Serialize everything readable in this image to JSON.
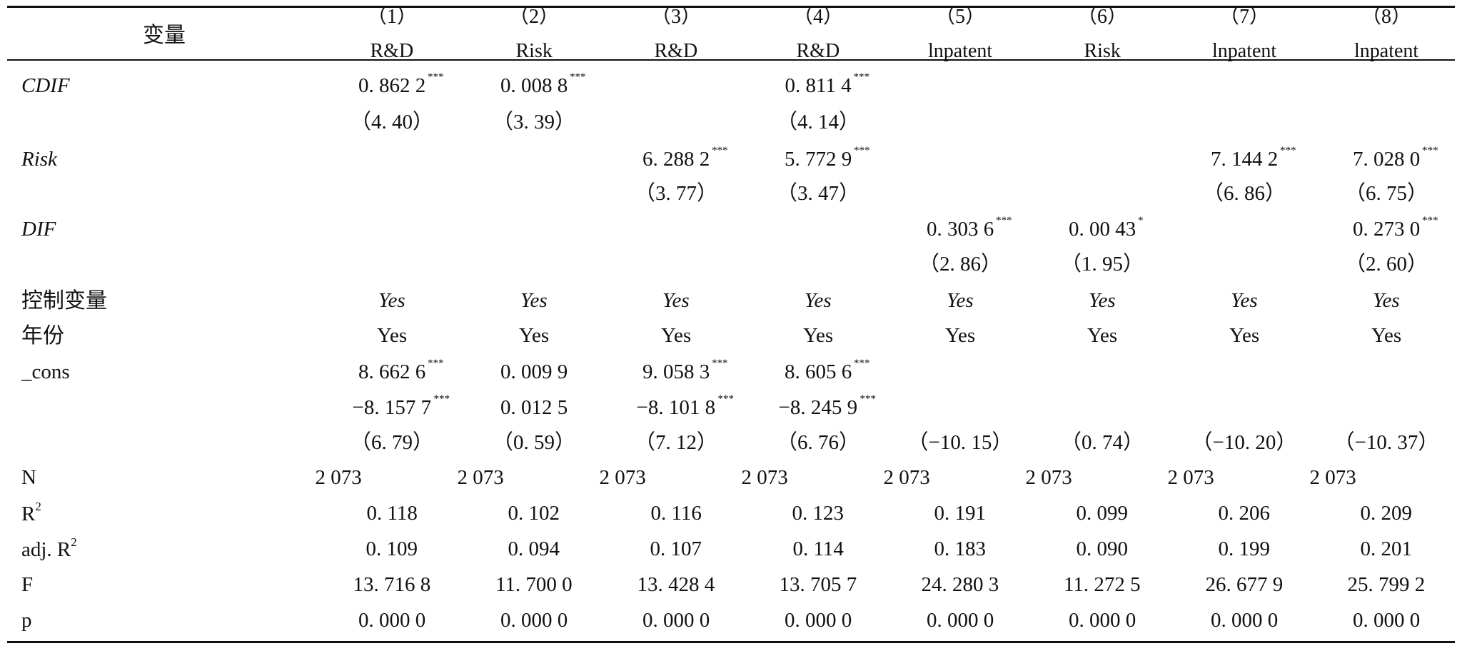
{
  "table": {
    "header_label": "变量",
    "columns": [
      {
        "num": "（1）",
        "dep": "R&D"
      },
      {
        "num": "（2）",
        "dep": "Risk"
      },
      {
        "num": "（3）",
        "dep": "R&D"
      },
      {
        "num": "（4）",
        "dep": "R&D"
      },
      {
        "num": "（5）",
        "dep": "lnpatent"
      },
      {
        "num": "（6）",
        "dep": "Risk"
      },
      {
        "num": "（7）",
        "dep": "lnpatent"
      },
      {
        "num": "（8）",
        "dep": "lnpatent"
      }
    ],
    "rows": {
      "cdif": {
        "label": "CDIF",
        "coef": [
          "0. 862 2",
          "0. 008 8",
          "",
          "0. 811 4",
          "",
          "",
          "",
          ""
        ],
        "stars": [
          "***",
          "***",
          "",
          "***",
          "",
          "",
          "",
          ""
        ],
        "t": [
          "（4. 40）",
          "（3. 39）",
          "",
          "（4. 14）",
          "",
          "",
          "",
          ""
        ]
      },
      "risk": {
        "label": "Risk",
        "coef": [
          "",
          "",
          "6. 288 2",
          "5. 772 9",
          "",
          "",
          "7. 144 2",
          "7. 028 0"
        ],
        "stars": [
          "",
          "",
          "***",
          "***",
          "",
          "",
          "***",
          "***"
        ],
        "t": [
          "",
          "",
          "（3. 77）",
          "（3. 47）",
          "",
          "",
          "（6. 86）",
          "（6. 75）"
        ]
      },
      "dif": {
        "label": "DIF",
        "coef": [
          "",
          "",
          "",
          "",
          "0. 303 6",
          "0. 00 43",
          "",
          "0. 273 0"
        ],
        "stars": [
          "",
          "",
          "",
          "",
          "***",
          "*",
          "",
          "***"
        ],
        "t": [
          "",
          "",
          "",
          "",
          "（2. 86）",
          "（1. 95）",
          "",
          "（2. 60）"
        ]
      },
      "controls": {
        "label": "控制变量",
        "values": [
          "Yes",
          "Yes",
          "Yes",
          "Yes",
          "Yes",
          "Yes",
          "Yes",
          "Yes"
        ]
      },
      "year": {
        "label": "年份",
        "values": [
          "Yes",
          "Yes",
          "Yes",
          "Yes",
          "Yes",
          "Yes",
          "Yes",
          "Yes"
        ]
      },
      "cons": {
        "label": "_cons",
        "line1": [
          "8. 662 6",
          "0. 009 9",
          "9. 058 3",
          "8. 605 6",
          "",
          "",
          "",
          ""
        ],
        "line1_stars": [
          "***",
          "",
          "***",
          "***",
          "",
          "",
          "",
          ""
        ],
        "line2": [
          "−8. 157 7",
          "0. 012 5",
          "−8. 101 8",
          "−8. 245 9",
          "",
          "",
          "",
          ""
        ],
        "line2_stars": [
          "***",
          "",
          "***",
          "***",
          "",
          "",
          "",
          ""
        ],
        "t": [
          "（6. 79）",
          "（0. 59）",
          "（7. 12）",
          "（6. 76）",
          "（−10. 15）",
          "（0. 74）",
          "（−10. 20）",
          "（−10. 37）"
        ]
      },
      "n": {
        "label": "N",
        "values": [
          "2 073",
          "2 073",
          "2 073",
          "2 073",
          "2 073",
          "2 073",
          "2 073",
          "2 073"
        ]
      },
      "r2": {
        "label": "R",
        "label_sup": "2",
        "values": [
          "0. 118",
          "0. 102",
          "0. 116",
          "0. 123",
          "0. 191",
          "0. 099",
          "0. 206",
          "0. 209"
        ]
      },
      "adjr2": {
        "label": "adj. R",
        "label_sup": "2",
        "values": [
          "0. 109",
          "0. 094",
          "0. 107",
          "0. 114",
          "0. 183",
          "0. 090",
          "0. 199",
          "0. 201"
        ]
      },
      "f": {
        "label": "F",
        "values": [
          "13. 716 8",
          "11. 700 0",
          "13. 428 4",
          "13. 705 7",
          "24. 280 3",
          "11. 272 5",
          "26. 677 9",
          "25. 799 2"
        ]
      },
      "p": {
        "label": "p",
        "values": [
          "0. 000 0",
          "0. 000 0",
          "0. 000 0",
          "0. 000 0",
          "0. 000 0",
          "0. 000 0",
          "0. 000 0",
          "0. 000 0"
        ]
      }
    }
  }
}
